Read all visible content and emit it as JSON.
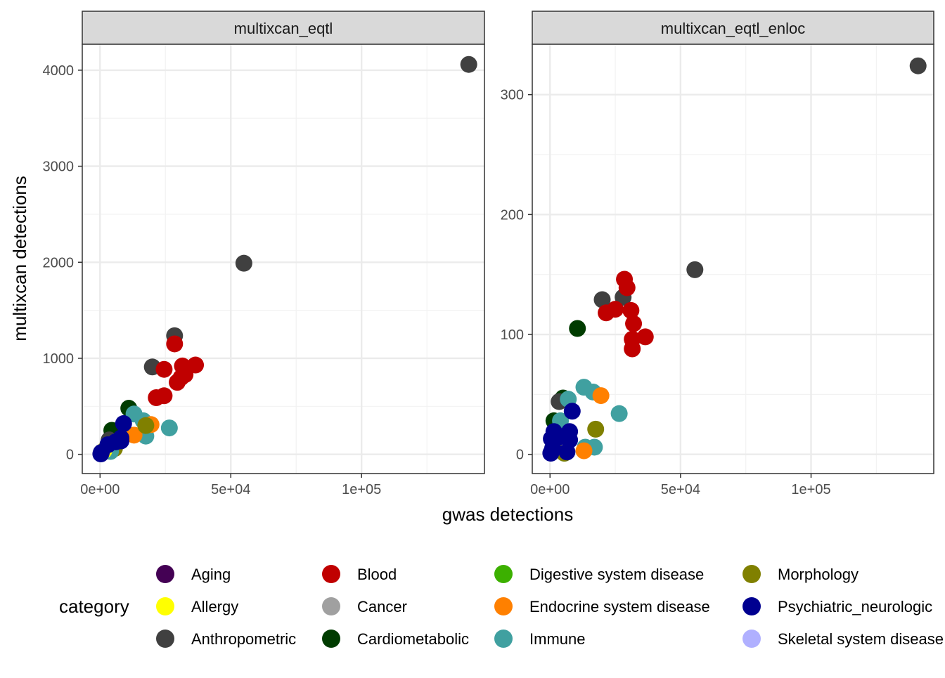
{
  "chart_data": {
    "type": "scatter",
    "xlabel": "gwas detections",
    "ylabel": "multixcan detections",
    "legend_title": "category",
    "legend_position": "bottom",
    "grid": true,
    "categories": [
      {
        "name": "Aging",
        "color": "#440154"
      },
      {
        "name": "Allergy",
        "color": "#FFFF00"
      },
      {
        "name": "Anthropometric",
        "color": "#404040"
      },
      {
        "name": "Blood",
        "color": "#C00000"
      },
      {
        "name": "Cancer",
        "color": "#A0A0A0"
      },
      {
        "name": "Cardiometabolic",
        "color": "#003C00"
      },
      {
        "name": "Digestive system disease",
        "color": "#3CB000"
      },
      {
        "name": "Endocrine system disease",
        "color": "#FF8000"
      },
      {
        "name": "Immune",
        "color": "#40A0A0"
      },
      {
        "name": "Morphology",
        "color": "#808000"
      },
      {
        "name": "Psychiatric_neurologic",
        "color": "#000090"
      },
      {
        "name": "Skeletal system disease",
        "color": "#B0B0FF"
      }
    ],
    "panels": [
      {
        "title": "multixcan_eqtl",
        "xlim": [
          -6800,
          147000
        ],
        "ylim": [
          -200,
          4270
        ],
        "xticks": [
          0,
          50000,
          100000
        ],
        "xtick_labels": [
          "0e+00",
          "5e+04",
          "1e+05"
        ],
        "yticks": [
          0,
          1000,
          2000,
          3000,
          4000
        ],
        "ytick_labels": [
          "0",
          "1000",
          "2000",
          "3000",
          "4000"
        ],
        "points": [
          {
            "x": 141000,
            "y": 4060,
            "c": "Anthropometric"
          },
          {
            "x": 55000,
            "y": 1990,
            "c": "Anthropometric"
          },
          {
            "x": 28500,
            "y": 1235,
            "c": "Anthropometric"
          },
          {
            "x": 20000,
            "y": 910,
            "c": "Anthropometric"
          },
          {
            "x": 28500,
            "y": 1150,
            "c": "Blood"
          },
          {
            "x": 24500,
            "y": 885,
            "c": "Blood"
          },
          {
            "x": 31500,
            "y": 920,
            "c": "Blood"
          },
          {
            "x": 36500,
            "y": 930,
            "c": "Blood"
          },
          {
            "x": 32500,
            "y": 830,
            "c": "Blood"
          },
          {
            "x": 31000,
            "y": 800,
            "c": "Blood"
          },
          {
            "x": 29500,
            "y": 750,
            "c": "Blood"
          },
          {
            "x": 24500,
            "y": 610,
            "c": "Blood"
          },
          {
            "x": 21500,
            "y": 590,
            "c": "Blood"
          },
          {
            "x": 11000,
            "y": 480,
            "c": "Cardiometabolic"
          },
          {
            "x": 4500,
            "y": 250,
            "c": "Cardiometabolic"
          },
          {
            "x": 13000,
            "y": 420,
            "c": "Immune"
          },
          {
            "x": 16500,
            "y": 350,
            "c": "Immune"
          },
          {
            "x": 26500,
            "y": 275,
            "c": "Immune"
          },
          {
            "x": 17500,
            "y": 190,
            "c": "Immune"
          },
          {
            "x": 19500,
            "y": 310,
            "c": "Endocrine system disease"
          },
          {
            "x": 13000,
            "y": 200,
            "c": "Endocrine system disease"
          },
          {
            "x": 17500,
            "y": 300,
            "c": "Morphology"
          },
          {
            "x": 5500,
            "y": 60,
            "c": "Morphology"
          },
          {
            "x": 3500,
            "y": 150,
            "c": "Anthropometric"
          },
          {
            "x": 4000,
            "y": 30,
            "c": "Immune"
          },
          {
            "x": 1500,
            "y": 40,
            "c": "Allergy"
          },
          {
            "x": 9000,
            "y": 320,
            "c": "Psychiatric_neurologic"
          },
          {
            "x": 8000,
            "y": 170,
            "c": "Psychiatric_neurologic"
          },
          {
            "x": 6000,
            "y": 130,
            "c": "Psychiatric_neurologic"
          },
          {
            "x": 7500,
            "y": 150,
            "c": "Psychiatric_neurologic"
          },
          {
            "x": 3000,
            "y": 100,
            "c": "Psychiatric_neurologic"
          },
          {
            "x": 8000,
            "y": 140,
            "c": "Psychiatric_neurologic"
          },
          {
            "x": 500,
            "y": 20,
            "c": "Psychiatric_neurologic"
          },
          {
            "x": 300,
            "y": 5,
            "c": "Psychiatric_neurologic"
          }
        ]
      },
      {
        "title": "multixcan_eqtl_enloc",
        "xlim": [
          -6800,
          147000
        ],
        "ylim": [
          -16,
          342
        ],
        "xticks": [
          0,
          50000,
          100000
        ],
        "xtick_labels": [
          "0e+00",
          "5e+04",
          "1e+05"
        ],
        "yticks": [
          0,
          100,
          200,
          300
        ],
        "ytick_labels": [
          "0",
          "100",
          "200",
          "300"
        ],
        "points": [
          {
            "x": 141000,
            "y": 324,
            "c": "Anthropometric"
          },
          {
            "x": 55500,
            "y": 154,
            "c": "Anthropometric"
          },
          {
            "x": 20000,
            "y": 129,
            "c": "Anthropometric"
          },
          {
            "x": 28000,
            "y": 131,
            "c": "Anthropometric"
          },
          {
            "x": 28500,
            "y": 146,
            "c": "Blood"
          },
          {
            "x": 29500,
            "y": 139,
            "c": "Blood"
          },
          {
            "x": 25000,
            "y": 121,
            "c": "Blood"
          },
          {
            "x": 21500,
            "y": 118,
            "c": "Blood"
          },
          {
            "x": 31000,
            "y": 120,
            "c": "Blood"
          },
          {
            "x": 32000,
            "y": 109,
            "c": "Blood"
          },
          {
            "x": 36500,
            "y": 98,
            "c": "Blood"
          },
          {
            "x": 31500,
            "y": 96,
            "c": "Blood"
          },
          {
            "x": 31500,
            "y": 88,
            "c": "Blood"
          },
          {
            "x": 10500,
            "y": 105,
            "c": "Cardiometabolic"
          },
          {
            "x": 5000,
            "y": 47,
            "c": "Cardiometabolic"
          },
          {
            "x": 1500,
            "y": 28,
            "c": "Cardiometabolic"
          },
          {
            "x": 3500,
            "y": 44,
            "c": "Anthropometric"
          },
          {
            "x": 13000,
            "y": 56,
            "c": "Immune"
          },
          {
            "x": 16500,
            "y": 52,
            "c": "Immune"
          },
          {
            "x": 26500,
            "y": 34,
            "c": "Immune"
          },
          {
            "x": 7000,
            "y": 46,
            "c": "Immune"
          },
          {
            "x": 4000,
            "y": 28,
            "c": "Immune"
          },
          {
            "x": 13500,
            "y": 6,
            "c": "Immune"
          },
          {
            "x": 17000,
            "y": 6,
            "c": "Immune"
          },
          {
            "x": 5500,
            "y": 1,
            "c": "Immune"
          },
          {
            "x": 19500,
            "y": 49,
            "c": "Endocrine system disease"
          },
          {
            "x": 13000,
            "y": 3,
            "c": "Endocrine system disease"
          },
          {
            "x": 17500,
            "y": 21,
            "c": "Morphology"
          },
          {
            "x": 5500,
            "y": 1,
            "c": "Morphology"
          },
          {
            "x": 8500,
            "y": 36,
            "c": "Psychiatric_neurologic"
          },
          {
            "x": 1500,
            "y": 19,
            "c": "Psychiatric_neurologic"
          },
          {
            "x": 7500,
            "y": 19,
            "c": "Psychiatric_neurologic"
          },
          {
            "x": 3000,
            "y": 14,
            "c": "Psychiatric_neurologic"
          },
          {
            "x": 7500,
            "y": 12,
            "c": "Psychiatric_neurologic"
          },
          {
            "x": 6500,
            "y": 2,
            "c": "Psychiatric_neurologic"
          },
          {
            "x": 1000,
            "y": 5,
            "c": "Psychiatric_neurologic"
          },
          {
            "x": 500,
            "y": 13,
            "c": "Psychiatric_neurologic"
          },
          {
            "x": 300,
            "y": 1,
            "c": "Psychiatric_neurologic"
          }
        ]
      }
    ]
  }
}
